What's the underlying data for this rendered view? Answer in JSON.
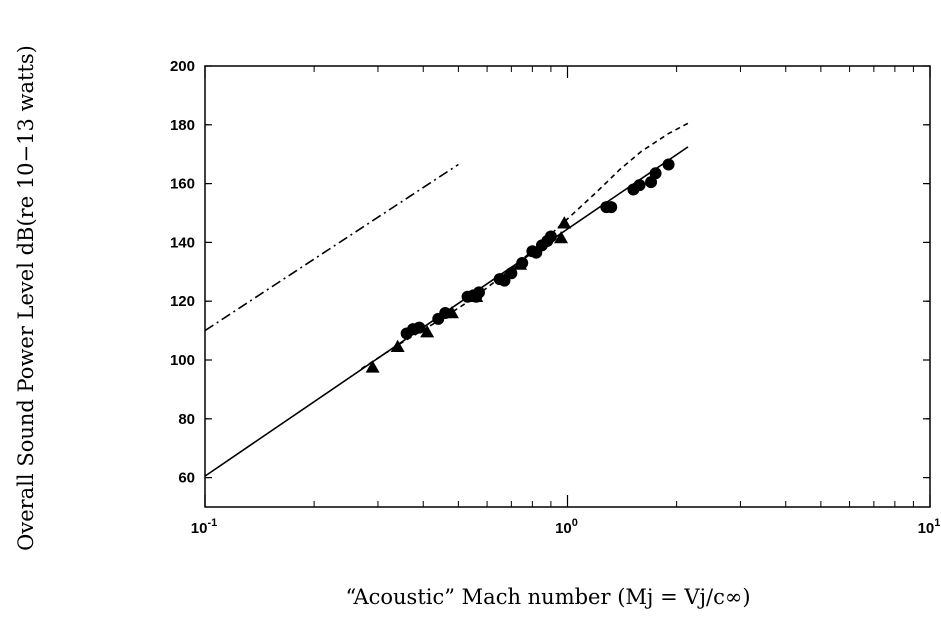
{
  "chart_data": {
    "type": "line",
    "title": "",
    "xlabel": "“Acoustic” Mach number (Mj = Vj/c∞)",
    "ylabel": "Overall Sound Power Level dB(re 10−13 watts)",
    "xscale": "log",
    "xlim": [
      0.1,
      10
    ],
    "ylim": [
      50,
      200
    ],
    "x_ticks": [
      {
        "value": 0.1,
        "base": "10",
        "exp": "-1"
      },
      {
        "value": 1,
        "base": "10",
        "exp": "0"
      },
      {
        "value": 10,
        "base": "10",
        "exp": "1"
      }
    ],
    "y_ticks": [
      60,
      80,
      100,
      120,
      140,
      160,
      180,
      200
    ],
    "grid": false,
    "series": [
      {
        "style": "solid",
        "x": [
          0.1,
          2.15
        ],
        "y": [
          60.5,
          172.5
        ]
      },
      {
        "style": "dashed",
        "x": [
          0.27,
          0.35,
          0.45,
          0.55,
          0.7,
          0.85,
          1.0,
          1.2,
          1.4,
          1.6,
          1.9,
          2.15
        ],
        "y": [
          97,
          106,
          114,
          121,
          131,
          140,
          148,
          157,
          165,
          171,
          177,
          180.5
        ]
      },
      {
        "style": "dash-dot",
        "x": [
          0.1,
          0.5
        ],
        "y": [
          110,
          166.5
        ]
      },
      {
        "style": "markers",
        "marker": "circle",
        "x": [
          0.36,
          0.375,
          0.39,
          0.44,
          0.46,
          0.53,
          0.55,
          0.56,
          0.57,
          0.65,
          0.67,
          0.7,
          0.75,
          0.8,
          0.82,
          0.85,
          0.88,
          0.9,
          1.28,
          1.32,
          1.52,
          1.58,
          1.7,
          1.75,
          1.9
        ],
        "y": [
          109,
          110.5,
          111,
          114,
          116,
          121.5,
          122,
          121.5,
          123,
          127.5,
          127,
          129.5,
          133,
          137,
          136.5,
          139,
          140.5,
          142,
          152,
          152,
          158,
          159.5,
          160.5,
          163.5,
          166.5
        ]
      },
      {
        "style": "markers",
        "marker": "triangle",
        "x": [
          0.29,
          0.34,
          0.41,
          0.48,
          0.56,
          0.74,
          0.96,
          0.98
        ],
        "y": [
          97.5,
          104.5,
          109.5,
          116,
          121.5,
          132.5,
          141.5,
          146.5
        ]
      }
    ]
  }
}
